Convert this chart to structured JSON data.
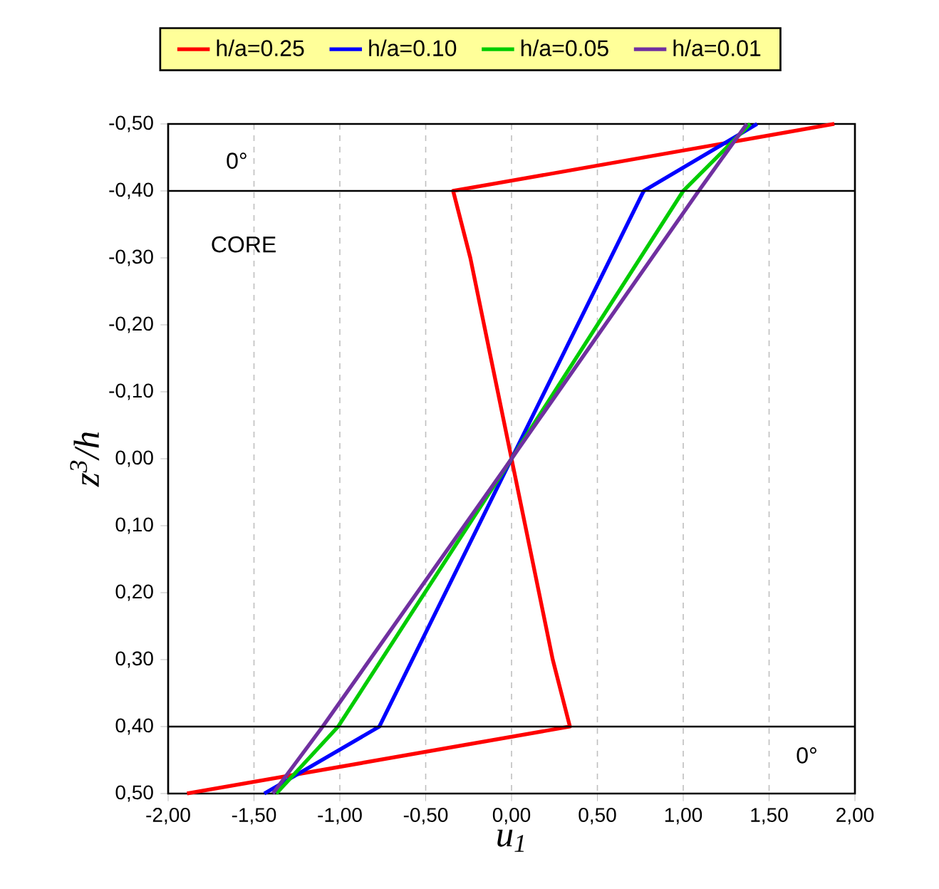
{
  "chart_data": {
    "type": "line",
    "xlabel": "u$_{1}$",
    "ylabel": "z$^{3}$/h",
    "xlim": [
      -2.0,
      2.0
    ],
    "ylim": [
      0.5,
      -0.5
    ],
    "xticks": [
      {
        "value": -2.0,
        "label": "-2,00"
      },
      {
        "value": -1.5,
        "label": "-1,50"
      },
      {
        "value": -1.0,
        "label": "-1,00"
      },
      {
        "value": -0.5,
        "label": "-0,50"
      },
      {
        "value": 0.0,
        "label": "0,00"
      },
      {
        "value": 0.5,
        "label": "0,50"
      },
      {
        "value": 1.0,
        "label": "1,00"
      },
      {
        "value": 1.5,
        "label": "1,50"
      },
      {
        "value": 2.0,
        "label": "2,00"
      }
    ],
    "yticks": [
      {
        "value": -0.5,
        "label": "-0,50"
      },
      {
        "value": -0.4,
        "label": "-0,40"
      },
      {
        "value": -0.3,
        "label": "-0,30"
      },
      {
        "value": -0.2,
        "label": "-0,20"
      },
      {
        "value": -0.1,
        "label": "-0,10"
      },
      {
        "value": 0.0,
        "label": "0,00"
      },
      {
        "value": 0.1,
        "label": "0,10"
      },
      {
        "value": 0.2,
        "label": "0,20"
      },
      {
        "value": 0.3,
        "label": "0,30"
      },
      {
        "value": 0.4,
        "label": "0,40"
      },
      {
        "value": 0.5,
        "label": "0,50"
      }
    ],
    "grid": "x",
    "legend": "top",
    "marker": "none",
    "line_style": "solid",
    "ref_lines": [
      {
        "axis": "y",
        "value": -0.4,
        "color": "#000000"
      },
      {
        "axis": "y",
        "value": 0.4,
        "color": "#000000"
      }
    ],
    "annotations": [
      "0°",
      "CORE",
      "0°"
    ],
    "series": [
      {
        "name": "h/a=0.25",
        "color": "#ff0000",
        "x": [
          1.88,
          -0.34,
          -0.24,
          -0.16,
          -0.08,
          0.0,
          0.08,
          0.16,
          0.24,
          0.34,
          -1.89
        ],
        "values": [
          -0.5,
          -0.4,
          -0.3,
          -0.2,
          -0.1,
          0.0,
          0.1,
          0.2,
          0.3,
          0.4,
          0.5
        ]
      },
      {
        "name": "h/a=0.10",
        "color": "#0000ff",
        "x": [
          1.43,
          0.77,
          0.0,
          -0.77,
          -1.44
        ],
        "values": [
          -0.5,
          -0.4,
          0.0,
          0.4,
          0.5
        ]
      },
      {
        "name": "h/a=0.05",
        "color": "#00cc00",
        "x": [
          1.39,
          1.0,
          0.0,
          -1.01,
          -1.37
        ],
        "values": [
          -0.5,
          -0.4,
          0.0,
          0.4,
          0.5
        ]
      },
      {
        "name": "h/a=0.01",
        "color": "#7030a0",
        "x": [
          1.37,
          1.09,
          0.0,
          -1.1,
          -1.39
        ],
        "values": [
          -0.5,
          -0.4,
          0.0,
          0.4,
          0.5
        ]
      }
    ]
  }
}
